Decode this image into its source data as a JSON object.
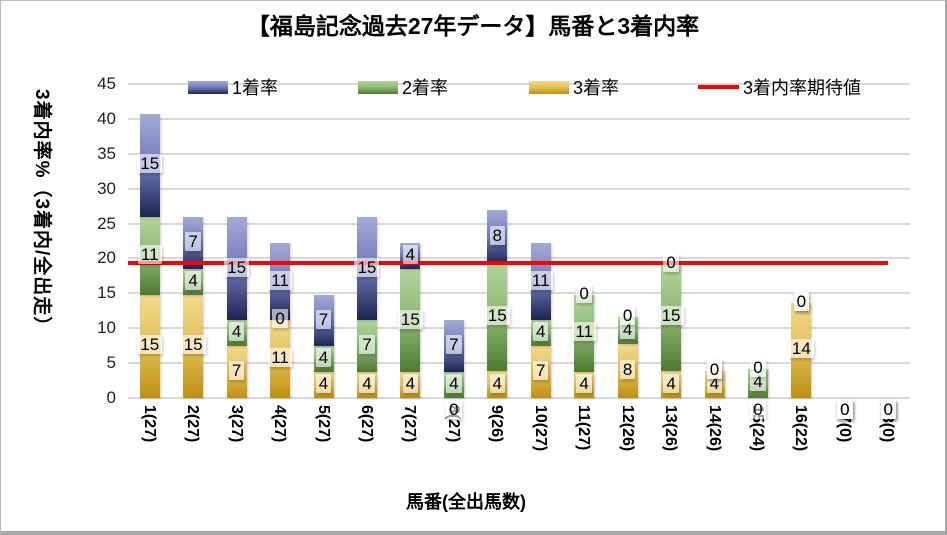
{
  "title": "【福島記念過去27年データ】馬番と3着内率",
  "chart_data": {
    "type": "stacked-bar",
    "title": "【福島記念過去27年データ】馬番と3着内率",
    "xlabel": "馬番(全出馬数)",
    "ylabel": "3着内率%（3着内/全出走）",
    "ylim": [
      0,
      45
    ],
    "ytick_step": 5,
    "grid": true,
    "legend_position": "top",
    "categories": [
      "1(27)",
      "2(27)",
      "3(27)",
      "4(27)",
      "5(27)",
      "6(27)",
      "7(27)",
      "8(27)",
      "9(26)",
      "10(27)",
      "11(27)",
      "12(26)",
      "13(26)",
      "14(26)",
      "15(24)",
      "16(22)",
      "17(0)",
      "18(0)"
    ],
    "series": [
      {
        "name": "3着率",
        "stack_order": "bottom",
        "color_top": "#f2da8f",
        "color_mid": "#e2c158",
        "color_bottom": "#bd8f0e",
        "values": [
          14.81,
          14.81,
          7.41,
          11.11,
          3.7,
          3.7,
          3.7,
          0,
          3.85,
          7.41,
          3.7,
          7.69,
          3.85,
          3.85,
          0,
          13.64,
          0,
          0
        ],
        "labels": [
          "15",
          "15",
          "7",
          "11",
          "4",
          "4",
          "4",
          "0",
          "4",
          "7",
          "4",
          "8",
          "4",
          "4",
          "0",
          "14",
          "0",
          "0"
        ]
      },
      {
        "name": "2着率",
        "stack_order": "middle",
        "color_top": "#b2d49d",
        "color_mid": "#8db873",
        "color_bottom": "#4e7a33",
        "values": [
          11.11,
          3.7,
          3.7,
          0,
          3.7,
          7.41,
          14.81,
          3.7,
          15.38,
          3.7,
          11.11,
          3.85,
          15.38,
          0,
          4.17,
          0,
          0,
          0
        ],
        "labels": [
          "11",
          "4",
          "4",
          "0",
          "4",
          "7",
          "15",
          "4",
          "15",
          "4",
          "11",
          "4",
          "15",
          "0",
          "4",
          "0",
          "0",
          "0"
        ]
      },
      {
        "name": "1着率",
        "stack_order": "top",
        "color_top": "#a3abd6",
        "color_mid": "#707ab8",
        "color_bottom": "#1c2452",
        "values": [
          14.81,
          7.41,
          14.81,
          11.11,
          7.41,
          14.81,
          3.7,
          7.41,
          7.69,
          11.11,
          0,
          0,
          0,
          0,
          0,
          0,
          0,
          0
        ],
        "labels": [
          "15",
          "7",
          "15",
          "11",
          "7",
          "15",
          "4",
          "7",
          "8",
          "11",
          "0",
          "0",
          "0",
          "0",
          "0",
          "0",
          "0",
          "0"
        ]
      }
    ],
    "expected_line": {
      "label": "3着内率期待値",
      "value": 19.29,
      "color": "#fe0000"
    },
    "legend": [
      {
        "label": "1着率",
        "swatch": "bar",
        "series": "1着率"
      },
      {
        "label": "2着率",
        "swatch": "bar",
        "series": "2着率"
      },
      {
        "label": "3着率",
        "swatch": "bar",
        "series": "3着率"
      },
      {
        "label": "3着内率期待値",
        "swatch": "line",
        "series": "expected"
      }
    ],
    "colors": {
      "gridline": "#d9d9d9",
      "background": "#ffffff",
      "title_text": "#000000"
    }
  }
}
